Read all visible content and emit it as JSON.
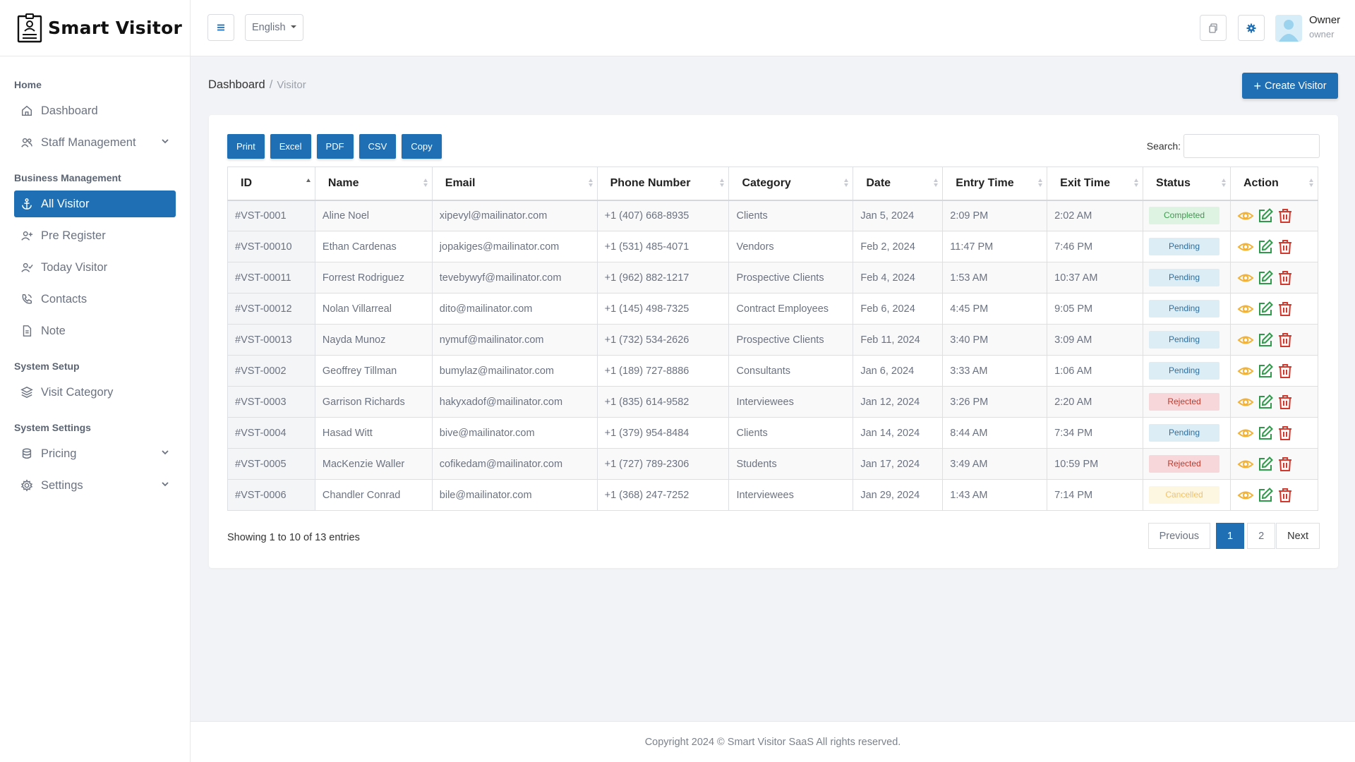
{
  "brand": {
    "name": "Smart Visitor",
    "logo_icon": "visitor-badge-logo"
  },
  "sidebar": {
    "sections": [
      {
        "title": "Home",
        "items": [
          {
            "label": "Dashboard",
            "icon": "home-icon",
            "active": false,
            "has_chevron": false
          },
          {
            "label": "Staff Management",
            "icon": "users-icon",
            "active": false,
            "has_chevron": true
          }
        ]
      },
      {
        "title": "Business Management",
        "items": [
          {
            "label": "All Visitor",
            "icon": "anchor-icon",
            "active": true,
            "has_chevron": false
          },
          {
            "label": "Pre Register",
            "icon": "user-plus-icon",
            "active": false,
            "has_chevron": false
          },
          {
            "label": "Today Visitor",
            "icon": "user-check-icon",
            "active": false,
            "has_chevron": false
          },
          {
            "label": "Contacts",
            "icon": "phone-icon",
            "active": false,
            "has_chevron": false
          },
          {
            "label": "Note",
            "icon": "file-icon",
            "active": false,
            "has_chevron": false
          }
        ]
      },
      {
        "title": "System Setup",
        "items": [
          {
            "label": "Visit Category",
            "icon": "layers-icon",
            "active": false,
            "has_chevron": false
          }
        ]
      },
      {
        "title": "System Settings",
        "items": [
          {
            "label": "Pricing",
            "icon": "database-icon",
            "active": false,
            "has_chevron": true
          },
          {
            "label": "Settings",
            "icon": "gear-icon",
            "active": false,
            "has_chevron": true
          }
        ]
      }
    ]
  },
  "topbar": {
    "language": "English",
    "user_name": "Owner",
    "user_role": "owner"
  },
  "breadcrumb": {
    "parent": "Dashboard",
    "separator": "/",
    "current": "Visitor"
  },
  "create_button": {
    "label": "Create Visitor"
  },
  "export_buttons": [
    "Print",
    "Excel",
    "PDF",
    "CSV",
    "Copy"
  ],
  "search": {
    "label": "Search:",
    "value": ""
  },
  "table": {
    "columns": [
      "ID",
      "Name",
      "Email",
      "Phone Number",
      "Category",
      "Date",
      "Entry Time",
      "Exit Time",
      "Status",
      "Action"
    ],
    "rows": [
      {
        "id": "#VST-0001",
        "name": "Aline Noel",
        "email": "xipevyl@mailinator.com",
        "phone": "+1 (407) 668-8935",
        "category": "Clients",
        "date": "Jan 5, 2024",
        "entry": "2:09 PM",
        "exit": "2:02 AM",
        "status": "Completed",
        "status_type": "completed"
      },
      {
        "id": "#VST-00010",
        "name": "Ethan Cardenas",
        "email": "jopakiges@mailinator.com",
        "phone": "+1 (531) 485-4071",
        "category": "Vendors",
        "date": "Feb 2, 2024",
        "entry": "11:47 PM",
        "exit": "7:46 PM",
        "status": "Pending",
        "status_type": "pending"
      },
      {
        "id": "#VST-00011",
        "name": "Forrest Rodriguez",
        "email": "tevebywyf@mailinator.com",
        "phone": "+1 (962) 882-1217",
        "category": "Prospective Clients",
        "date": "Feb 4, 2024",
        "entry": "1:53 AM",
        "exit": "10:37 AM",
        "status": "Pending",
        "status_type": "pending"
      },
      {
        "id": "#VST-00012",
        "name": "Nolan Villarreal",
        "email": "dito@mailinator.com",
        "phone": "+1 (145) 498-7325",
        "category": "Contract Employees",
        "date": "Feb 6, 2024",
        "entry": "4:45 PM",
        "exit": "9:05 PM",
        "status": "Pending",
        "status_type": "pending"
      },
      {
        "id": "#VST-00013",
        "name": "Nayda Munoz",
        "email": "nymuf@mailinator.com",
        "phone": "+1 (732) 534-2626",
        "category": "Prospective Clients",
        "date": "Feb 11, 2024",
        "entry": "3:40 PM",
        "exit": "3:09 AM",
        "status": "Pending",
        "status_type": "pending"
      },
      {
        "id": "#VST-0002",
        "name": "Geoffrey Tillman",
        "email": "bumylaz@mailinator.com",
        "phone": "+1 (189) 727-8886",
        "category": "Consultants",
        "date": "Jan 6, 2024",
        "entry": "3:33 AM",
        "exit": "1:06 AM",
        "status": "Pending",
        "status_type": "pending"
      },
      {
        "id": "#VST-0003",
        "name": "Garrison Richards",
        "email": "hakyxadof@mailinator.com",
        "phone": "+1 (835) 614-9582",
        "category": "Interviewees",
        "date": "Jan 12, 2024",
        "entry": "3:26 PM",
        "exit": "2:20 AM",
        "status": "Rejected",
        "status_type": "rejected"
      },
      {
        "id": "#VST-0004",
        "name": "Hasad Witt",
        "email": "bive@mailinator.com",
        "phone": "+1 (379) 954-8484",
        "category": "Clients",
        "date": "Jan 14, 2024",
        "entry": "8:44 AM",
        "exit": "7:34 PM",
        "status": "Pending",
        "status_type": "pending"
      },
      {
        "id": "#VST-0005",
        "name": "MacKenzie Waller",
        "email": "cofikedam@mailinator.com",
        "phone": "+1 (727) 789-2306",
        "category": "Students",
        "date": "Jan 17, 2024",
        "entry": "3:49 AM",
        "exit": "10:59 PM",
        "status": "Rejected",
        "status_type": "rejected"
      },
      {
        "id": "#VST-0006",
        "name": "Chandler Conrad",
        "email": "bile@mailinator.com",
        "phone": "+1 (368) 247-7252",
        "category": "Interviewees",
        "date": "Jan 29, 2024",
        "entry": "1:43 AM",
        "exit": "7:14 PM",
        "status": "Cancelled",
        "status_type": "cancelled"
      }
    ]
  },
  "info": "Showing 1 to 10 of 13 entries",
  "pagination": {
    "previous": "Previous",
    "pages": [
      "1",
      "2"
    ],
    "active_page": "1",
    "next": "Next"
  },
  "footer": "Copyright 2024 © Smart Visitor SaaS All rights reserved.",
  "colors": {
    "primary": "#1f6fb5",
    "view": "#f3b233",
    "edit": "#2e9a4a",
    "delete": "#d23a2f"
  }
}
